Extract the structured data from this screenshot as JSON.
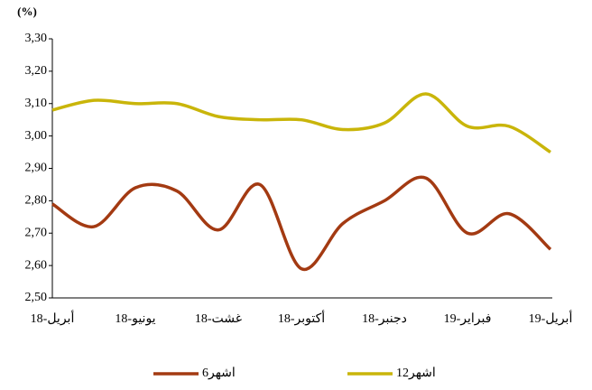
{
  "chart_data": {
    "type": "line",
    "y_label": "(%)",
    "categories": [
      "أبريل-18",
      null,
      "يونيو-18",
      null,
      "غشت-18",
      null,
      "أكتوبر-18",
      null,
      "دجنبر-18",
      null,
      "فبراير-19",
      null,
      "أبريل-19"
    ],
    "series": [
      {
        "name": "6اشهر",
        "color": "#a33a12",
        "values": [
          2.79,
          2.72,
          2.84,
          2.83,
          2.71,
          2.85,
          2.59,
          2.73,
          2.8,
          2.87,
          2.7,
          2.76,
          2.65
        ]
      },
      {
        "name": "12اشهر",
        "color": "#c9b50a",
        "values": [
          3.08,
          3.11,
          3.1,
          3.1,
          3.06,
          3.05,
          3.05,
          3.02,
          3.04,
          3.13,
          3.03,
          3.03,
          2.95
        ]
      }
    ],
    "ylim": [
      2.5,
      3.3
    ],
    "yticks": [
      {
        "value": 2.5,
        "label": "2,50"
      },
      {
        "value": 2.6,
        "label": "2,60"
      },
      {
        "value": 2.7,
        "label": "2,70"
      },
      {
        "value": 2.8,
        "label": "2,80"
      },
      {
        "value": 2.9,
        "label": "2,90"
      },
      {
        "value": 3.0,
        "label": "3,00"
      },
      {
        "value": 3.1,
        "label": "3,10"
      },
      {
        "value": 3.2,
        "label": "3,20"
      },
      {
        "value": 3.3,
        "label": "3,30"
      }
    ],
    "grid": false
  }
}
